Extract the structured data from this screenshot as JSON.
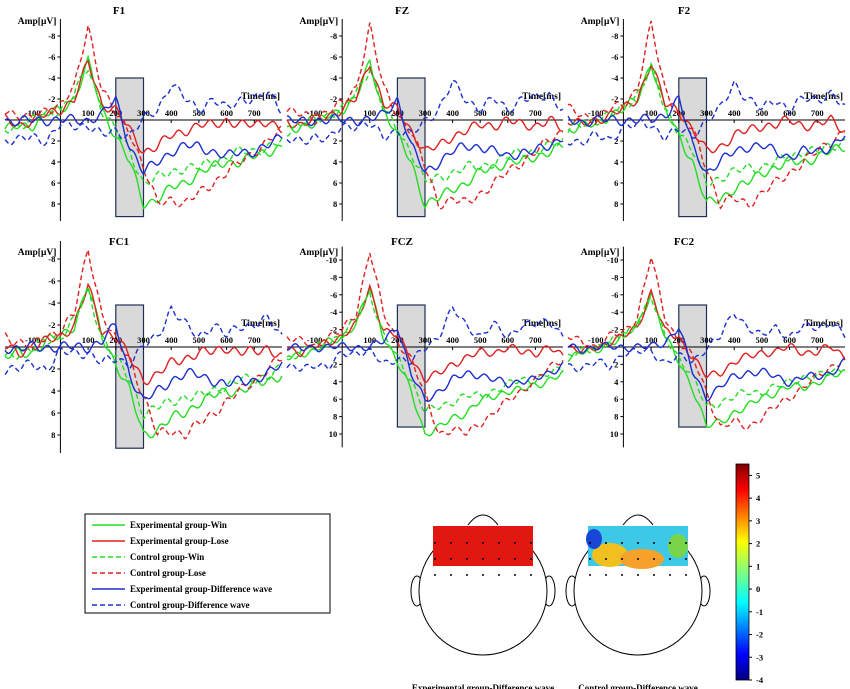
{
  "chart_data": {
    "type": "line",
    "panels": [
      {
        "title": "F1",
        "amp_label": "Amp[μV]",
        "time_label": "Time[ms]",
        "y_ticks": [
          -8,
          -6,
          -4,
          -2,
          2,
          4,
          6,
          8
        ],
        "y_range": [
          -10,
          10
        ],
        "x_ticks": [
          -100,
          100,
          200,
          300,
          400,
          500,
          600,
          700
        ],
        "x_range": [
          -200,
          800
        ],
        "window_ms": [
          200,
          300
        ]
      },
      {
        "title": "FZ",
        "amp_label": "Amp[μV]",
        "time_label": "Time[ms]",
        "y_ticks": [
          -8,
          -6,
          -4,
          -2,
          2,
          4,
          6,
          8
        ],
        "y_range": [
          -10,
          10
        ],
        "x_ticks": [
          -100,
          100,
          200,
          300,
          400,
          500,
          600,
          700
        ],
        "x_range": [
          -200,
          800
        ],
        "window_ms": [
          200,
          300
        ]
      },
      {
        "title": "F2",
        "amp_label": "Amp[μV]",
        "time_label": "Time[ms]",
        "y_ticks": [
          -8,
          -6,
          -4,
          -2,
          2,
          4,
          6,
          8
        ],
        "y_range": [
          -10,
          10
        ],
        "x_ticks": [
          -100,
          100,
          200,
          300,
          400,
          500,
          600,
          700
        ],
        "x_range": [
          -200,
          800
        ],
        "window_ms": [
          200,
          300
        ]
      },
      {
        "title": "FC1",
        "amp_label": "Amp[μV]",
        "time_label": "Time[ms]",
        "y_ticks": [
          -8,
          -6,
          -4,
          -2,
          2,
          4,
          6,
          8
        ],
        "y_range": [
          -10,
          10
        ],
        "x_ticks": [
          -100,
          100,
          200,
          300,
          400,
          500,
          600,
          700
        ],
        "x_range": [
          -200,
          800
        ],
        "window_ms": [
          200,
          300
        ]
      },
      {
        "title": "FCZ",
        "amp_label": "Amp[μV]",
        "time_label": "Time[ms]",
        "y_ticks": [
          -10,
          -8,
          -6,
          -4,
          -2,
          2,
          4,
          6,
          8,
          10
        ],
        "y_range": [
          -12,
          12
        ],
        "x_ticks": [
          -100,
          100,
          200,
          300,
          400,
          500,
          600,
          700
        ],
        "x_range": [
          -200,
          800
        ],
        "window_ms": [
          200,
          300
        ]
      },
      {
        "title": "FC2",
        "amp_label": "Amp[μV]",
        "time_label": "Time[ms]",
        "y_ticks": [
          -10,
          -8,
          -6,
          -4,
          -2,
          2,
          4,
          6,
          8,
          10
        ],
        "y_range": [
          -12,
          12
        ],
        "x_ticks": [
          -100,
          100,
          200,
          300,
          400,
          500,
          600,
          700
        ],
        "x_range": [
          -200,
          800
        ],
        "window_ms": [
          200,
          300
        ]
      }
    ],
    "x": [
      -200,
      -150,
      -100,
      -50,
      0,
      50,
      100,
      150,
      200,
      250,
      300,
      350,
      400,
      450,
      500,
      550,
      600,
      650,
      700,
      750,
      800
    ],
    "series": [
      {
        "name": "Experimental group-Win",
        "color": "#22dd22",
        "dashed": false,
        "values": [
          1,
          0.5,
          0.5,
          -0.5,
          -1,
          -2,
          -5.5,
          -1,
          1.5,
          4,
          8,
          7.5,
          6.5,
          6,
          5,
          4.5,
          4,
          4,
          3.5,
          3,
          2.5
        ]
      },
      {
        "name": "Experimental group-Lose",
        "color": "#e02020",
        "dashed": false,
        "values": [
          0,
          0.5,
          0,
          -0.5,
          -1,
          -2,
          -5.5,
          -1.5,
          -1,
          1,
          3,
          2.5,
          1.5,
          1,
          0.5,
          0.5,
          0,
          0.5,
          0.5,
          0,
          1
        ]
      },
      {
        "name": "Control group-Win",
        "color": "#22dd22",
        "dashed": true,
        "values": [
          1,
          0.5,
          0,
          -0.5,
          -1,
          -2.5,
          -5,
          -1,
          1,
          3,
          6,
          5.5,
          5,
          4.5,
          4.5,
          4,
          3.5,
          3,
          3,
          2.5,
          2
        ]
      },
      {
        "name": "Control group-Lose",
        "color": "#e02020",
        "dashed": true,
        "values": [
          -1,
          -0.5,
          0,
          -1,
          -1.5,
          -3,
          -9,
          -3,
          -0.5,
          1,
          4.5,
          8,
          7.5,
          8,
          7,
          6,
          5,
          4,
          3,
          2,
          1
        ]
      },
      {
        "name": "Experimental group-Difference wave",
        "color": "#1c2fd0",
        "dashed": false,
        "values": [
          0,
          0.2,
          0,
          0,
          0,
          0,
          0,
          -0.5,
          -2,
          2.5,
          5,
          4,
          3,
          2.5,
          2.5,
          3,
          3.5,
          3,
          3,
          2.5,
          1.5
        ]
      },
      {
        "name": "Control group-Difference wave",
        "color": "#1c2fd0",
        "dashed": true,
        "values": [
          2,
          2,
          1.5,
          2,
          0.5,
          0.5,
          0.5,
          1.5,
          1,
          1.5,
          0,
          -1,
          -3.5,
          -2,
          -1,
          -2,
          -1,
          -2,
          -2,
          -2.5,
          -1
        ]
      }
    ],
    "scaled_panels": {
      "FCZ": 1.25,
      "FC2": 1.15
    },
    "legend": [
      "Experimental group-Win",
      "Experimental group-Lose",
      "Control group-Win",
      "Control group-Lose",
      "Experimental group-Difference wave",
      "Control group-Difference wave"
    ],
    "topomaps": [
      {
        "caption": "Experimental group-Difference wave"
      },
      {
        "caption": "Control group-Difference wave"
      }
    ],
    "colorbar": {
      "ticks": [
        5,
        4,
        3,
        2,
        1,
        0,
        -1,
        -2,
        -3,
        -4
      ],
      "range": [
        -4,
        5.5
      ]
    }
  }
}
